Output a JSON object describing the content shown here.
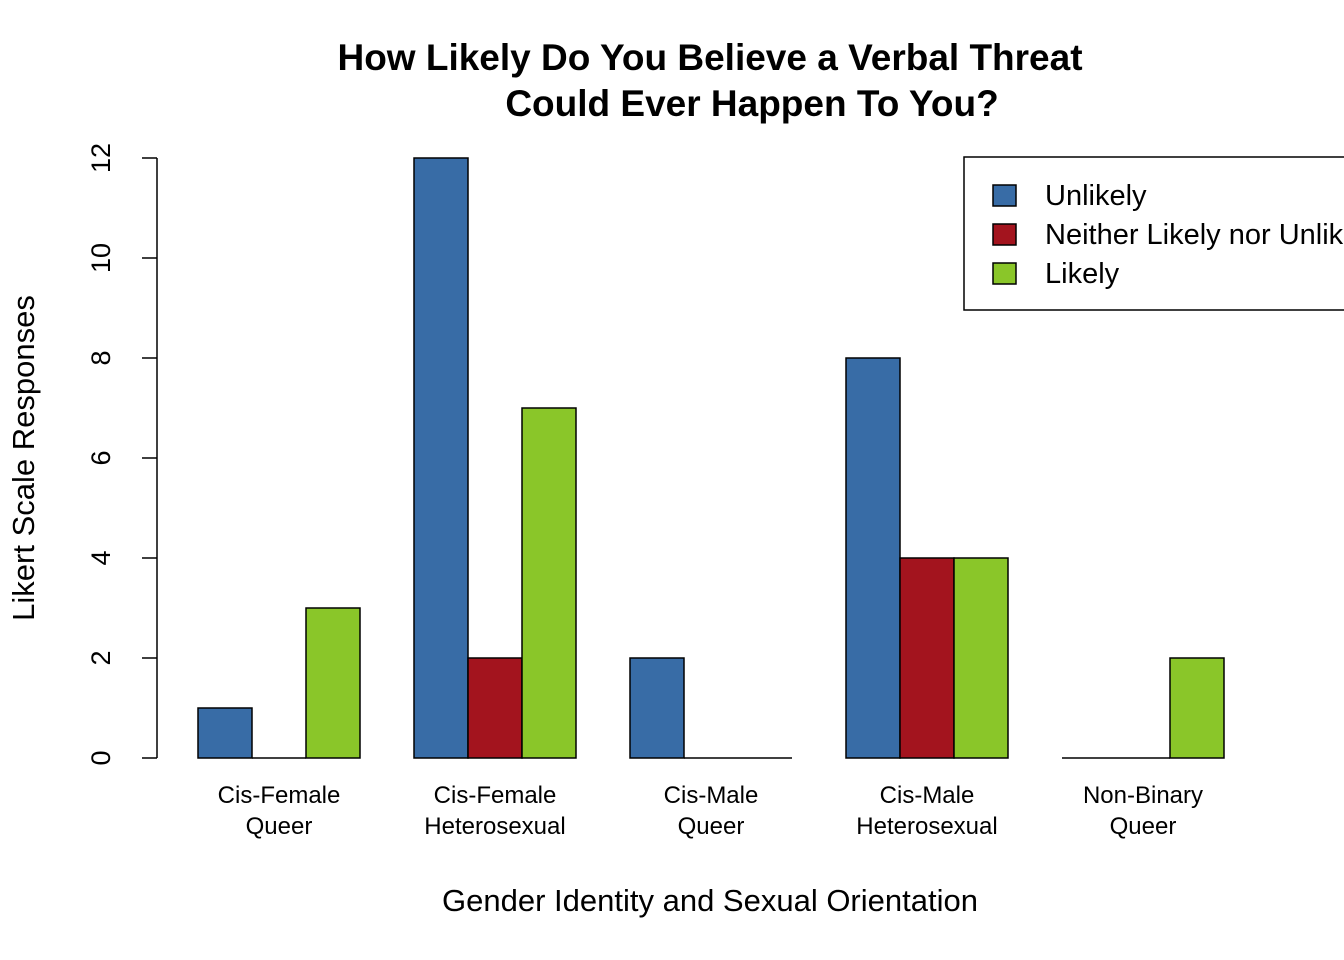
{
  "chart_data": {
    "type": "bar",
    "title": [
      "How Likely Do You Believe a Verbal Threat",
      "Could Ever Happen To You?"
    ],
    "xlabel": "Gender Identity and Sexual Orientation",
    "ylabel": "Likert Scale Responses",
    "ylim": [
      0,
      12
    ],
    "yticks": [
      "0",
      "2",
      "4",
      "6",
      "8",
      "10",
      "12"
    ],
    "categories": [
      [
        "Cis-Female",
        "Queer"
      ],
      [
        "Cis-Female",
        "Heterosexual"
      ],
      [
        "Cis-Male",
        "Queer"
      ],
      [
        "Cis-Male",
        "Heterosexual"
      ],
      [
        "Non-Binary",
        "Queer"
      ]
    ],
    "series": [
      {
        "name": "Unlikely",
        "color": "#386CA6",
        "values": [
          1,
          12,
          2,
          8,
          0
        ]
      },
      {
        "name": "Neither Likely nor Unlikely",
        "color": "#A3141E",
        "values": [
          0,
          2,
          0,
          4,
          0
        ]
      },
      {
        "name": "Likely",
        "color": "#8AC629",
        "values": [
          3,
          7,
          0,
          4,
          2
        ]
      }
    ],
    "grid": false,
    "legend_position": "top-right"
  }
}
